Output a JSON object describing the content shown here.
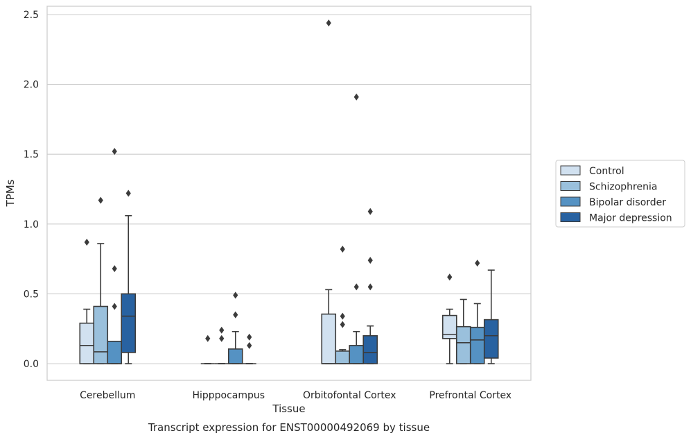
{
  "chart_data": {
    "type": "boxplot",
    "title": "",
    "caption": "Transcript expression for ENST00000492069 by tissue",
    "xlabel": "Tissue",
    "ylabel": "TPMs",
    "ylim": [
      -0.12,
      2.57
    ],
    "yticks": [
      "0.0",
      "0.5",
      "1.0",
      "1.5",
      "2.0",
      "2.5"
    ],
    "grid": "horizontal",
    "legend_position": "right",
    "categories": [
      "Cerebellum",
      "Hipppocampus",
      "Orbitofontal Cortex",
      "Prefrontal Cortex"
    ],
    "series": [
      {
        "name": "Control",
        "color": "#d1e1f0",
        "boxes": [
          {
            "whislo": 0,
            "q1": 0,
            "med": 0.13,
            "q3": 0.29,
            "whishi": 0.39,
            "fliers": [
              0.87
            ]
          },
          {
            "whislo": 0,
            "q1": 0,
            "med": 0,
            "q3": 0,
            "whishi": 0,
            "fliers": [
              0.18
            ]
          },
          {
            "whislo": 0,
            "q1": 0,
            "med": 0,
            "q3": 0.355,
            "whishi": 0.53,
            "fliers": [
              2.44
            ]
          },
          {
            "whislo": 0,
            "q1": 0.18,
            "med": 0.21,
            "q3": 0.345,
            "whishi": 0.39,
            "fliers": [
              0.62
            ]
          }
        ]
      },
      {
        "name": "Schizophrenia",
        "color": "#9ac0dc",
        "boxes": [
          {
            "whislo": 0,
            "q1": 0,
            "med": 0.085,
            "q3": 0.41,
            "whishi": 0.86,
            "fliers": [
              1.17
            ]
          },
          {
            "whislo": 0,
            "q1": 0,
            "med": 0,
            "q3": 0,
            "whishi": 0,
            "fliers": [
              0.18,
              0.24
            ]
          },
          {
            "whislo": 0,
            "q1": 0,
            "med": 0,
            "q3": 0.09,
            "whishi": 0.1,
            "fliers": [
              0.28,
              0.34,
              0.82
            ]
          },
          {
            "whislo": 0,
            "q1": 0,
            "med": 0.15,
            "q3": 0.265,
            "whishi": 0.46,
            "fliers": []
          }
        ]
      },
      {
        "name": "Bipolar disorder",
        "color": "#5592c3",
        "boxes": [
          {
            "whislo": 0,
            "q1": 0,
            "med": 0,
            "q3": 0.16,
            "whishi": 0.16,
            "fliers": [
              0.41,
              0.68,
              1.52
            ]
          },
          {
            "whislo": 0,
            "q1": 0,
            "med": 0,
            "q3": 0.105,
            "whishi": 0.23,
            "fliers": [
              0.35,
              0.49
            ]
          },
          {
            "whislo": 0,
            "q1": 0,
            "med": 0,
            "q3": 0.13,
            "whishi": 0.23,
            "fliers": [
              0.55,
              1.91
            ]
          },
          {
            "whislo": 0,
            "q1": 0,
            "med": 0.17,
            "q3": 0.26,
            "whishi": 0.43,
            "fliers": [
              0.72
            ]
          }
        ]
      },
      {
        "name": "Major depression",
        "color": "#2862a1",
        "boxes": [
          {
            "whislo": 0,
            "q1": 0.08,
            "med": 0.34,
            "q3": 0.5,
            "whishi": 1.06,
            "fliers": [
              1.22
            ]
          },
          {
            "whislo": 0,
            "q1": 0,
            "med": 0,
            "q3": 0,
            "whishi": 0,
            "fliers": [
              0.13,
              0.19
            ]
          },
          {
            "whislo": 0,
            "q1": 0,
            "med": 0.08,
            "q3": 0.2,
            "whishi": 0.27,
            "fliers": [
              0.55,
              0.74,
              1.09
            ]
          },
          {
            "whislo": 0,
            "q1": 0.04,
            "med": 0.2,
            "q3": 0.315,
            "whishi": 0.67,
            "fliers": []
          }
        ]
      }
    ]
  }
}
